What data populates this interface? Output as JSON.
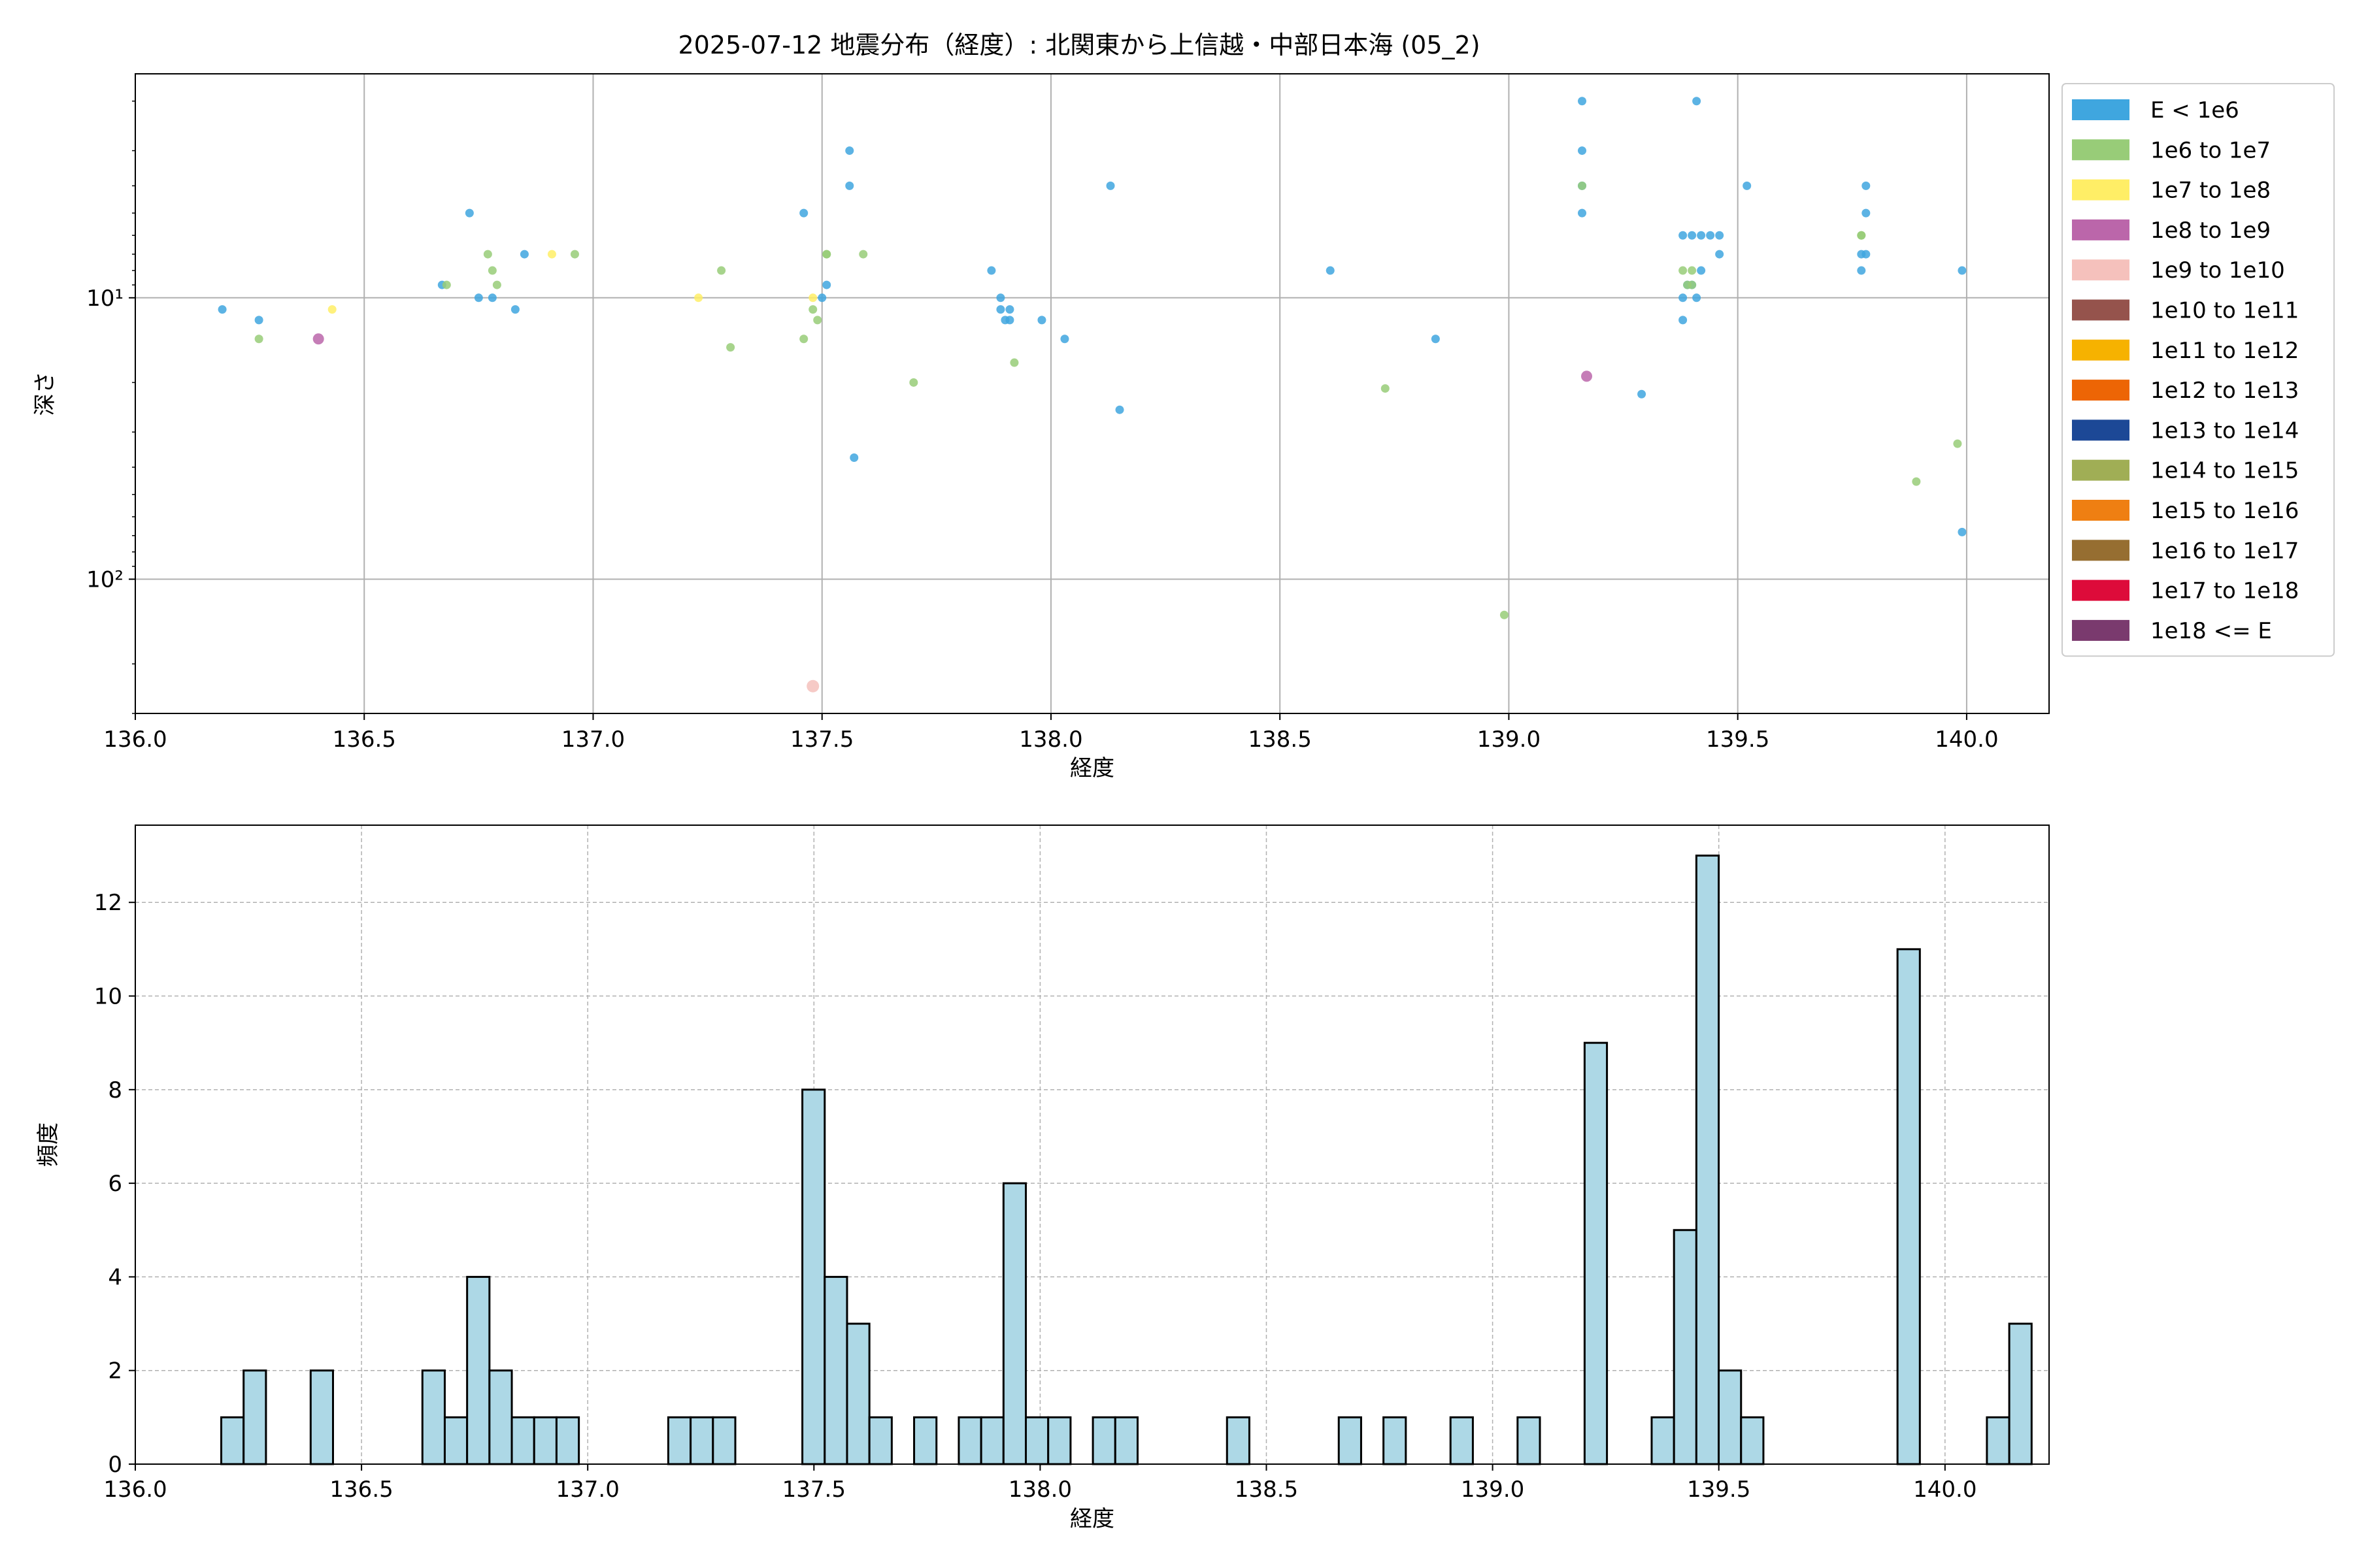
{
  "title": "2025-07-12 地震分布（経度）: 北関東から上信越・中部日本海 (05_2)",
  "chart_data": [
    {
      "type": "scatter",
      "xlabel": "経度",
      "ylabel": "深さ",
      "xlim": [
        136.0,
        140.18
      ],
      "ylim": [
        300,
        1.6
      ],
      "yscale": "log-inverted",
      "ytick_labels": [
        "10¹",
        "10²"
      ],
      "xtick_labels": [
        "136.0",
        "136.5",
        "137.0",
        "137.5",
        "138.0",
        "138.5",
        "139.0",
        "139.5",
        "140.0"
      ],
      "grid": true,
      "legend_position": "right, outside",
      "legend": [
        {
          "label": "E < 1e6",
          "color": "#3fa6df"
        },
        {
          "label": "1e6 to 1e7",
          "color": "#98cc78"
        },
        {
          "label": "1e7 to 1e8",
          "color": "#ffee66"
        },
        {
          "label": "1e8 to 1e9",
          "color": "#bb66aa"
        },
        {
          "label": "1e9 to 1e10",
          "color": "#f5c1bc"
        },
        {
          "label": "1e10 to 1e11",
          "color": "#95534c"
        },
        {
          "label": "1e11 to 1e12",
          "color": "#f6b200"
        },
        {
          "label": "1e12 to 1e13",
          "color": "#ed6505"
        },
        {
          "label": "1e13 to 1e14",
          "color": "#1c4896"
        },
        {
          "label": "1e14 to 1e15",
          "color": "#a0ae55"
        },
        {
          "label": "1e15 to 1e16",
          "color": "#ef7f12"
        },
        {
          "label": "1e16 to 1e17",
          "color": "#966e31"
        },
        {
          "label": "1e17 to 1e18",
          "color": "#dd0b3a"
        },
        {
          "label": "1e18 <= E",
          "color": "#7a3a6e"
        }
      ],
      "series": [
        {
          "class": 0,
          "points": [
            [
              136.19,
              11.0
            ],
            [
              136.27,
              12.0
            ],
            [
              136.67,
              9.0
            ],
            [
              136.73,
              5.0
            ],
            [
              136.75,
              10.0
            ],
            [
              136.78,
              10.0
            ],
            [
              136.83,
              11.0
            ],
            [
              136.85,
              7.0
            ],
            [
              137.46,
              5.0
            ],
            [
              137.5,
              10.0
            ],
            [
              137.51,
              9.0
            ],
            [
              137.56,
              3.0
            ],
            [
              137.56,
              4.0
            ],
            [
              137.57,
              37.0
            ],
            [
              137.87,
              8.0
            ],
            [
              137.89,
              10.0
            ],
            [
              137.89,
              11.0
            ],
            [
              137.9,
              12.0
            ],
            [
              137.91,
              12.0
            ],
            [
              137.91,
              11.0
            ],
            [
              137.98,
              12.0
            ],
            [
              138.03,
              14.0
            ],
            [
              138.13,
              4.0
            ],
            [
              138.15,
              25.0
            ],
            [
              138.61,
              8.0
            ],
            [
              138.84,
              14.0
            ],
            [
              139.16,
              2.0
            ],
            [
              139.16,
              3.0
            ],
            [
              139.16,
              4.0
            ],
            [
              139.16,
              5.0
            ],
            [
              139.29,
              22.0
            ],
            [
              139.38,
              6.0
            ],
            [
              139.38,
              10.0
            ],
            [
              139.38,
              12.0
            ],
            [
              139.39,
              9.0
            ],
            [
              139.4,
              6.0
            ],
            [
              139.4,
              9.0
            ],
            [
              139.41,
              10.0
            ],
            [
              139.41,
              2.0
            ],
            [
              139.42,
              6.0
            ],
            [
              139.42,
              8.0
            ],
            [
              139.44,
              6.0
            ],
            [
              139.46,
              7.0
            ],
            [
              139.46,
              6.0
            ],
            [
              139.52,
              4.0
            ],
            [
              139.77,
              7.0
            ],
            [
              139.77,
              8.0
            ],
            [
              139.78,
              7.0
            ],
            [
              139.78,
              5.0
            ],
            [
              139.78,
              4.0
            ],
            [
              139.99,
              8.0
            ],
            [
              139.99,
              68.0
            ]
          ]
        },
        {
          "class": 1,
          "points": [
            [
              136.27,
              14.0
            ],
            [
              136.68,
              9.0
            ],
            [
              136.77,
              7.0
            ],
            [
              136.78,
              8.0
            ],
            [
              136.79,
              9.0
            ],
            [
              136.96,
              7.0
            ],
            [
              137.28,
              8.0
            ],
            [
              137.3,
              15.0
            ],
            [
              137.46,
              14.0
            ],
            [
              137.48,
              11.0
            ],
            [
              137.49,
              12.0
            ],
            [
              137.51,
              7.0
            ],
            [
              137.51,
              7.0
            ],
            [
              137.59,
              7.0
            ],
            [
              137.7,
              20.0
            ],
            [
              137.92,
              17.0
            ],
            [
              138.73,
              21.0
            ],
            [
              138.99,
              134.0
            ],
            [
              139.16,
              4.0
            ],
            [
              139.38,
              8.0
            ],
            [
              139.39,
              9.0
            ],
            [
              139.4,
              8.0
            ],
            [
              139.4,
              9.0
            ],
            [
              139.77,
              6.0
            ],
            [
              139.77,
              6.0
            ],
            [
              139.89,
              45.0
            ],
            [
              139.98,
              33.0
            ]
          ]
        },
        {
          "class": 2,
          "points": [
            [
              136.43,
              11.0
            ],
            [
              136.91,
              7.0
            ],
            [
              137.23,
              10.0
            ],
            [
              137.48,
              10.0
            ]
          ]
        },
        {
          "class": 3,
          "points": [
            [
              136.4,
              14.0
            ],
            [
              139.17,
              19.0
            ]
          ]
        },
        {
          "class": 4,
          "points": [
            [
              137.48,
              240.0
            ]
          ]
        }
      ]
    },
    {
      "type": "bar",
      "subtype": "histogram",
      "xlabel": "経度",
      "ylabel": "頻度",
      "xlim": [
        136.0,
        140.23
      ],
      "ylim": [
        0,
        13.65
      ],
      "ytick_labels": [
        "0",
        "2",
        "4",
        "6",
        "8",
        "10",
        "12"
      ],
      "xtick_labels": [
        "136.0",
        "136.5",
        "137.0",
        "137.5",
        "138.0",
        "138.5",
        "139.0",
        "139.5",
        "140.0"
      ],
      "grid": true,
      "bar_color": "#add8e6",
      "bin_width": 0.0494,
      "bin_start": 136.19,
      "counts": [
        1,
        2,
        0,
        0,
        2,
        0,
        0,
        0,
        0,
        2,
        1,
        4,
        2,
        1,
        1,
        1,
        0,
        0,
        0,
        0,
        1,
        1,
        1,
        0,
        0,
        0,
        8,
        4,
        3,
        1,
        0,
        1,
        0,
        1,
        1,
        6,
        1,
        1,
        0,
        1,
        1,
        0,
        0,
        0,
        0,
        1,
        0,
        0,
        0,
        0,
        1,
        0,
        1,
        0,
        0,
        1,
        0,
        0,
        1,
        0,
        0,
        9,
        0,
        0,
        1,
        5,
        13,
        2,
        1,
        0,
        0,
        0,
        0,
        0,
        0,
        11,
        0,
        0,
        0,
        1,
        3
      ]
    }
  ]
}
